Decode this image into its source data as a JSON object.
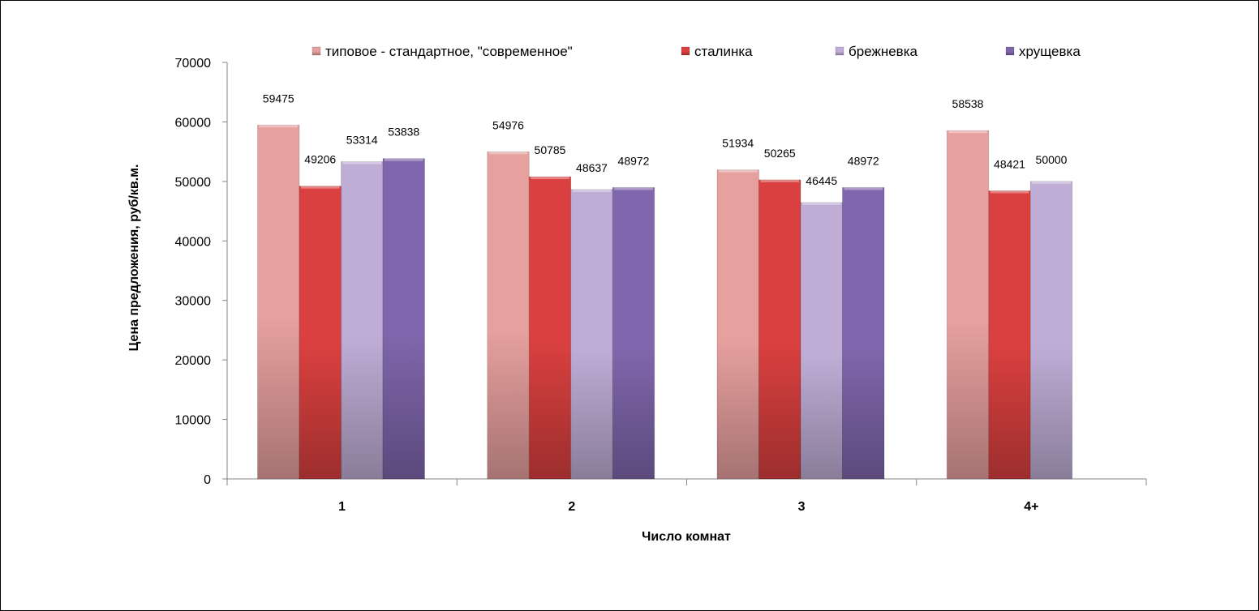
{
  "chart_data": {
    "type": "bar",
    "title": "",
    "xlabel": "Число комнат",
    "ylabel": "Цена предложения, руб/кв.м.",
    "ylim": [
      0,
      70000
    ],
    "yticks": [
      0,
      10000,
      20000,
      30000,
      40000,
      50000,
      60000,
      70000
    ],
    "categories": [
      "1",
      "2",
      "3",
      "4+"
    ],
    "legend_position": "top",
    "grid": false,
    "series": [
      {
        "name": "типовое - стандартное, \"современное\"",
        "color": "#e6a09e",
        "values": [
          59475,
          54976,
          51934,
          58538
        ]
      },
      {
        "name": "сталинка",
        "color": "#d9403f",
        "values": [
          49206,
          50785,
          50265,
          48421
        ]
      },
      {
        "name": "брежневка",
        "color": "#bfadd6",
        "values": [
          53314,
          48637,
          46445,
          50000
        ]
      },
      {
        "name": "хрущевка",
        "color": "#8066ac",
        "values": [
          53838,
          48972,
          48972,
          null
        ]
      }
    ]
  }
}
